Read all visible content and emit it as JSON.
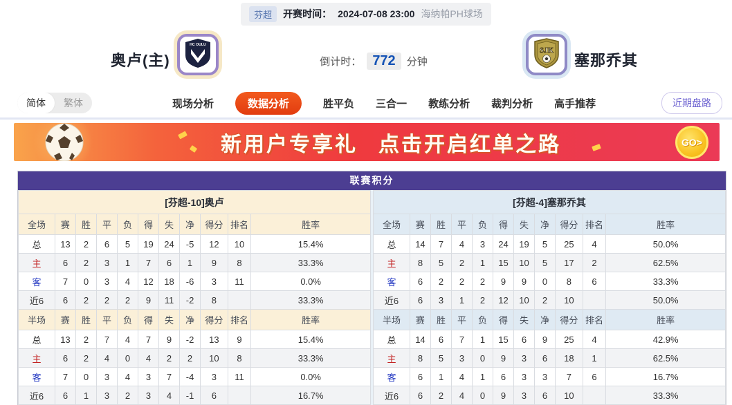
{
  "match_info": {
    "league_badge": "芬超",
    "kickoff_label": "开赛时间：",
    "kickoff_time": "2024-07-08 23:00",
    "venue": "海纳帕PH球场",
    "home_team": "奥卢(主)",
    "away_team": "塞那乔其",
    "home_logo_text": "HC OULU",
    "away_logo_text": "SJK",
    "countdown_label": "倒计时：",
    "countdown_value": "772",
    "countdown_unit": "分钟"
  },
  "nav": {
    "lang_simplified": "简体",
    "lang_traditional": "繁体",
    "tabs": [
      {
        "label": "现场分析",
        "active": false
      },
      {
        "label": "数据分析",
        "active": true
      },
      {
        "label": "胜平负",
        "active": false
      },
      {
        "label": "三合一",
        "active": false
      },
      {
        "label": "教练分析",
        "active": false
      },
      {
        "label": "裁判分析",
        "active": false
      },
      {
        "label": "高手推荐",
        "active": false
      }
    ],
    "recent_odds_label": "近期盘路"
  },
  "banner": {
    "text_left": "新用户专享礼",
    "text_right": "点击开启红单之路",
    "go_label": "GO>"
  },
  "table": {
    "title": "联赛积分",
    "home": {
      "title": "[芬超-10]奥卢",
      "full_header": [
        "全场",
        "赛",
        "胜",
        "平",
        "负",
        "得",
        "失",
        "净",
        "得分",
        "排名",
        "胜率"
      ],
      "full_rows": [
        [
          "总",
          "13",
          "2",
          "6",
          "5",
          "19",
          "24",
          "-5",
          "12",
          "10",
          "15.4%"
        ],
        [
          "主",
          "6",
          "2",
          "3",
          "1",
          "7",
          "6",
          "1",
          "9",
          "8",
          "33.3%"
        ],
        [
          "客",
          "7",
          "0",
          "3",
          "4",
          "12",
          "18",
          "-6",
          "3",
          "11",
          "0.0%"
        ],
        [
          "近6",
          "6",
          "2",
          "2",
          "2",
          "9",
          "11",
          "-2",
          "8",
          "",
          "33.3%"
        ]
      ],
      "half_header": [
        "半场",
        "赛",
        "胜",
        "平",
        "负",
        "得",
        "失",
        "净",
        "得分",
        "排名",
        "胜率"
      ],
      "half_rows": [
        [
          "总",
          "13",
          "2",
          "7",
          "4",
          "7",
          "9",
          "-2",
          "13",
          "9",
          "15.4%"
        ],
        [
          "主",
          "6",
          "2",
          "4",
          "0",
          "4",
          "2",
          "2",
          "10",
          "8",
          "33.3%"
        ],
        [
          "客",
          "7",
          "0",
          "3",
          "4",
          "3",
          "7",
          "-4",
          "3",
          "11",
          "0.0%"
        ],
        [
          "近6",
          "6",
          "1",
          "3",
          "2",
          "3",
          "4",
          "-1",
          "6",
          "",
          "16.7%"
        ]
      ]
    },
    "away": {
      "title": "[芬超-4]塞那乔其",
      "full_header": [
        "全场",
        "赛",
        "胜",
        "平",
        "负",
        "得",
        "失",
        "净",
        "得分",
        "排名",
        "胜率"
      ],
      "full_rows": [
        [
          "总",
          "14",
          "7",
          "4",
          "3",
          "24",
          "19",
          "5",
          "25",
          "4",
          "50.0%"
        ],
        [
          "主",
          "8",
          "5",
          "2",
          "1",
          "15",
          "10",
          "5",
          "17",
          "2",
          "62.5%"
        ],
        [
          "客",
          "6",
          "2",
          "2",
          "2",
          "9",
          "9",
          "0",
          "8",
          "6",
          "33.3%"
        ],
        [
          "近6",
          "6",
          "3",
          "1",
          "2",
          "12",
          "10",
          "2",
          "10",
          "",
          "50.0%"
        ]
      ],
      "half_header": [
        "半场",
        "赛",
        "胜",
        "平",
        "负",
        "得",
        "失",
        "净",
        "得分",
        "排名",
        "胜率"
      ],
      "half_rows": [
        [
          "总",
          "14",
          "6",
          "7",
          "1",
          "15",
          "6",
          "9",
          "25",
          "4",
          "42.9%"
        ],
        [
          "主",
          "8",
          "5",
          "3",
          "0",
          "9",
          "3",
          "6",
          "18",
          "1",
          "62.5%"
        ],
        [
          "客",
          "6",
          "1",
          "4",
          "1",
          "6",
          "3",
          "3",
          "7",
          "6",
          "16.7%"
        ],
        [
          "近6",
          "6",
          "2",
          "4",
          "0",
          "9",
          "3",
          "6",
          "10",
          "",
          "33.3%"
        ]
      ]
    }
  },
  "colors": {
    "table_header_purple": "#4c3e92",
    "active_tab_orange": "#e8431f",
    "countdown_blue": "#1553b5",
    "home_row_red": "#c32323",
    "away_row_blue": "#2439c2",
    "home_section_cream": "#fbf0d8",
    "away_section_blue": "#dfeaf3",
    "banner_gradient_start": "#f9a34b",
    "banner_gradient_end": "#eb3a56"
  }
}
